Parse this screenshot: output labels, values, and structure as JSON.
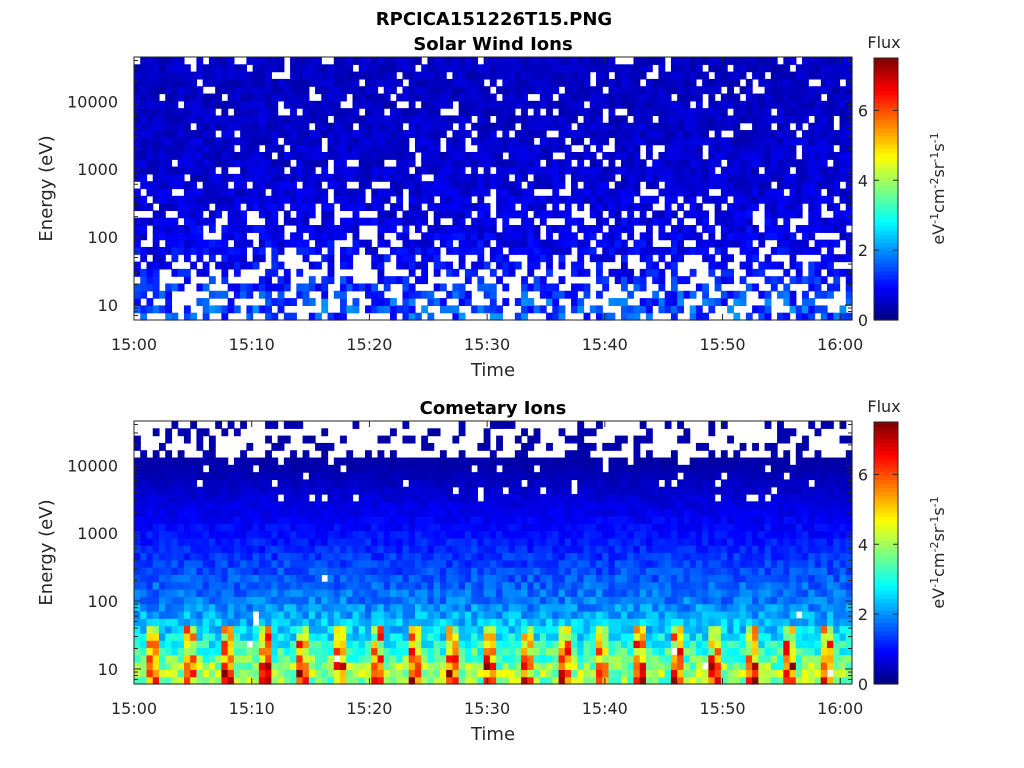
{
  "figure_title": "RPCICA151226T15.PNG",
  "chart_data": [
    {
      "type": "heatmap",
      "title": "Solar Wind Ions",
      "xlabel": "Time",
      "ylabel": "Energy (eV)",
      "x_ticks": [
        "15:00",
        "15:10",
        "15:20",
        "15:30",
        "15:40",
        "15:50",
        "16:00"
      ],
      "xlim": [
        "15:00",
        "16:01"
      ],
      "y_scale": "log",
      "y_ticks": [
        "10",
        "100",
        "1000",
        "10000"
      ],
      "ylim": [
        6,
        45000
      ],
      "colorbar": {
        "title": "Flux",
        "label": "eV-1cm-2sr-1s-1",
        "ticks": [
          "0",
          "2",
          "4",
          "6"
        ],
        "range": [
          0,
          7.5
        ],
        "colormap": "jet"
      },
      "description_of_values": "Mostly low flux (about 0.3 to 1.5) across all energies; many empty bins below 100 eV; sparse coverage",
      "energy_profile": [
        {
          "energy_eV": 10,
          "typical_flux": 1.5
        },
        {
          "energy_eV": 30,
          "typical_flux": 1.0
        },
        {
          "energy_eV": 100,
          "typical_flux": 0.8
        },
        {
          "energy_eV": 1000,
          "typical_flux": 0.6
        },
        {
          "energy_eV": 10000,
          "typical_flux": 0.5
        }
      ]
    },
    {
      "type": "heatmap",
      "title": "Cometary Ions",
      "xlabel": "Time",
      "ylabel": "Energy (eV)",
      "x_ticks": [
        "15:00",
        "15:10",
        "15:20",
        "15:30",
        "15:40",
        "15:50",
        "16:00"
      ],
      "xlim": [
        "15:00",
        "16:01"
      ],
      "y_scale": "log",
      "y_ticks": [
        "10",
        "100",
        "1000",
        "10000"
      ],
      "ylim": [
        6,
        45000
      ],
      "colorbar": {
        "title": "Flux",
        "label": "eV-1cm-2sr-1s-1",
        "ticks": [
          "0",
          "2",
          "4",
          "6"
        ],
        "range": [
          0,
          7.5
        ],
        "colormap": "jet"
      },
      "description_of_values": "Flux increases toward low energies; periodic peaks of about 4 to 6 near 10-20 eV; sparse above 10000 eV",
      "energy_profile": [
        {
          "energy_eV": 10,
          "typical_flux": 3.8
        },
        {
          "energy_eV": 30,
          "typical_flux": 2.6
        },
        {
          "energy_eV": 100,
          "typical_flux": 1.8
        },
        {
          "energy_eV": 1000,
          "typical_flux": 1.0
        },
        {
          "energy_eV": 10000,
          "typical_flux": 0.3
        }
      ]
    }
  ]
}
